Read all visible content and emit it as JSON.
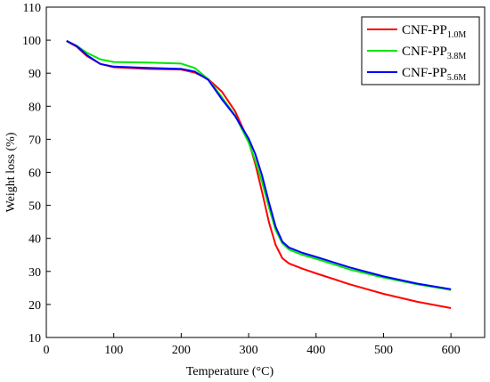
{
  "chart_data": {
    "type": "line",
    "xlabel": "Temperature (°C)",
    "ylabel": "Weight loss (%)",
    "xlim": [
      0,
      650
    ],
    "ylim": [
      10,
      110
    ],
    "xticks": [
      0,
      100,
      200,
      300,
      400,
      500,
      600
    ],
    "yticks": [
      10,
      20,
      30,
      40,
      50,
      60,
      70,
      80,
      90,
      100,
      110
    ],
    "grid": false,
    "legend_position": "top-right",
    "series": [
      {
        "name": "CNF-PP",
        "subscript": "1.0M",
        "color": "#ff0000",
        "x": [
          30,
          45,
          60,
          80,
          100,
          150,
          200,
          220,
          240,
          260,
          280,
          300,
          310,
          320,
          330,
          340,
          350,
          360,
          380,
          400,
          450,
          500,
          550,
          600
        ],
        "y": [
          99.7,
          98,
          95.2,
          92.8,
          91.8,
          91.3,
          91.1,
          90.2,
          88.2,
          84.5,
          78.5,
          69.5,
          62.5,
          54,
          45,
          38,
          34,
          32.4,
          30.8,
          29.4,
          26.1,
          23.2,
          20.8,
          18.9
        ]
      },
      {
        "name": "CNF-PP",
        "subscript": "3.8M",
        "color": "#00e600",
        "x": [
          30,
          45,
          60,
          80,
          100,
          150,
          200,
          220,
          240,
          260,
          280,
          300,
          310,
          320,
          330,
          340,
          350,
          360,
          380,
          400,
          450,
          500,
          550,
          600
        ],
        "y": [
          99.7,
          98.3,
          96.2,
          94.2,
          93.4,
          93.2,
          92.9,
          91.6,
          88.2,
          82.8,
          77.2,
          69,
          63.5,
          57,
          49.5,
          42.5,
          38.5,
          36.6,
          35,
          33.8,
          30.6,
          28.1,
          26.1,
          24.4
        ]
      },
      {
        "name": "CNF-PP",
        "subscript": "5.6M",
        "color": "#0000ff",
        "x": [
          30,
          45,
          60,
          80,
          100,
          150,
          200,
          220,
          240,
          260,
          280,
          300,
          310,
          320,
          330,
          340,
          350,
          360,
          380,
          400,
          450,
          500,
          550,
          600
        ],
        "y": [
          99.8,
          98.2,
          95.5,
          92.8,
          92,
          91.6,
          91.3,
          90.5,
          88,
          82.2,
          77,
          70.2,
          65.5,
          59,
          51,
          43.5,
          39,
          37.2,
          35.6,
          34.4,
          31.2,
          28.5,
          26.3,
          24.6
        ]
      }
    ]
  }
}
